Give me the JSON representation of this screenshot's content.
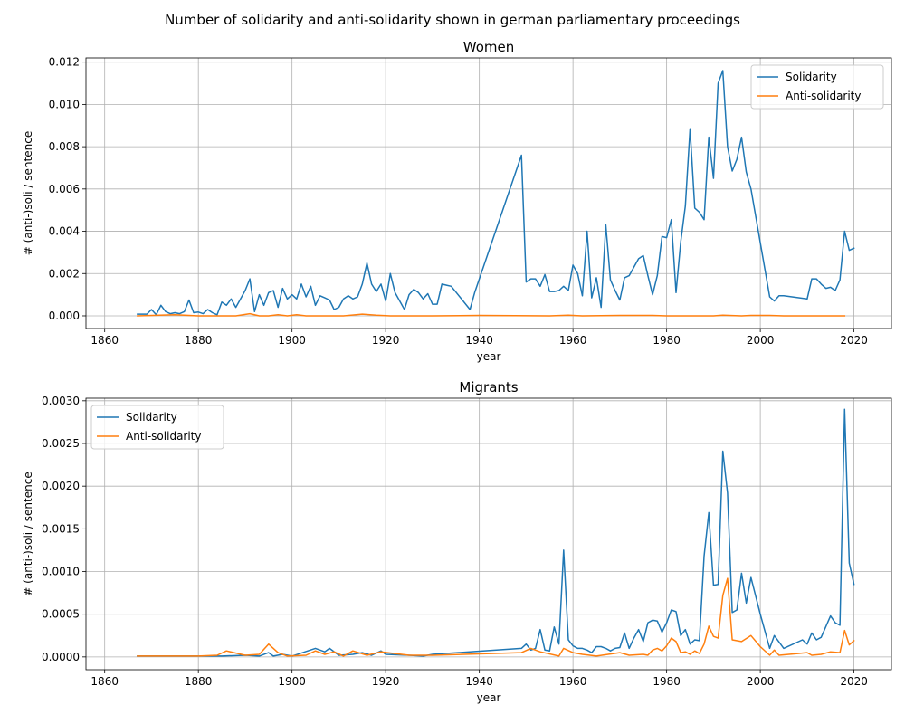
{
  "title": "Number of solidarity and anti-solidarity shown in german parliamentary proceedings",
  "colors": {
    "solidarity": "#1f77b4",
    "anti_solidarity": "#ff7f0e"
  },
  "chart_data": [
    {
      "type": "line",
      "title": "Women",
      "xlabel": "year",
      "ylabel": "# (anti-)soli / sentence",
      "xlim": [
        1856,
        2028
      ],
      "ylim": [
        -0.0006,
        0.0122
      ],
      "xticks": [
        1860,
        1880,
        1900,
        1920,
        1940,
        1960,
        1980,
        2000,
        2020
      ],
      "xtick_labels": [
        "1860",
        "1880",
        "1900",
        "1920",
        "1940",
        "1960",
        "1980",
        "2000",
        "2020"
      ],
      "yticks": [
        0,
        0.002,
        0.004,
        0.006,
        0.008,
        0.01,
        0.012
      ],
      "ytick_labels": [
        "0.000",
        "0.002",
        "0.004",
        "0.006",
        "0.008",
        "0.010",
        "0.012"
      ],
      "grid": true,
      "legend_position": "upper right",
      "series": [
        {
          "name": "Solidarity",
          "color": "#1f77b4",
          "x": [
            1867,
            1869,
            1870,
            1871,
            1872,
            1873,
            1874,
            1875,
            1876,
            1877,
            1878,
            1879,
            1880,
            1881,
            1882,
            1883,
            1884,
            1885,
            1886,
            1887,
            1888,
            1889,
            1890,
            1891,
            1892,
            1893,
            1894,
            1895,
            1896,
            1897,
            1898,
            1899,
            1900,
            1901,
            1902,
            1903,
            1904,
            1905,
            1906,
            1907,
            1908,
            1909,
            1910,
            1911,
            1912,
            1913,
            1914,
            1915,
            1916,
            1917,
            1918,
            1919,
            1920,
            1921,
            1922,
            1923,
            1924,
            1925,
            1926,
            1927,
            1928,
            1929,
            1930,
            1931,
            1932,
            1933,
            1934,
            1938,
            1939,
            1949,
            1950,
            1951,
            1952,
            1953,
            1954,
            1955,
            1956,
            1957,
            1958,
            1959,
            1960,
            1961,
            1962,
            1963,
            1964,
            1965,
            1966,
            1967,
            1968,
            1969,
            1970,
            1971,
            1972,
            1973,
            1974,
            1975,
            1976,
            1977,
            1978,
            1979,
            1980,
            1981,
            1982,
            1983,
            1984,
            1985,
            1986,
            1987,
            1988,
            1989,
            1990,
            1991,
            1992,
            1993,
            1994,
            1995,
            1996,
            1997,
            1998,
            2002,
            2003,
            2004,
            2005,
            2010,
            2011,
            2012,
            2013,
            2014,
            2015,
            2016,
            2017,
            2018,
            2019,
            2020
          ],
          "y": [
            8e-05,
            8e-05,
            0.0003,
            5e-05,
            0.0005,
            0.0002,
            0.0001,
            0.00015,
            0.0001,
            0.0002,
            0.00075,
            0.00015,
            0.00018,
            0.0001,
            0.0003,
            0.00015,
            5e-05,
            0.00065,
            0.0005,
            0.0008,
            0.0004,
            0.0008,
            0.0012,
            0.00175,
            0.0002,
            0.001,
            0.0005,
            0.0011,
            0.0012,
            0.0004,
            0.0013,
            0.0008,
            0.001,
            0.0008,
            0.0015,
            0.0009,
            0.0014,
            0.0005,
            0.00095,
            0.00085,
            0.00075,
            0.0003,
            0.0004,
            0.0008,
            0.00095,
            0.0008,
            0.0009,
            0.0015,
            0.0025,
            0.0015,
            0.00115,
            0.0015,
            0.0007,
            0.002,
            0.0011,
            0.0007,
            0.0003,
            0.001,
            0.00125,
            0.0011,
            0.0008,
            0.00105,
            0.00055,
            0.00055,
            0.0015,
            0.00145,
            0.0014,
            0.0003,
            0.0011,
            0.0076,
            0.0016,
            0.00175,
            0.00175,
            0.0014,
            0.00195,
            0.00115,
            0.00115,
            0.0012,
            0.0014,
            0.0012,
            0.0024,
            0.002,
            0.00095,
            0.004,
            0.00085,
            0.0018,
            0.0004,
            0.0043,
            0.0017,
            0.0012,
            0.00075,
            0.0018,
            0.0019,
            0.0023,
            0.0027,
            0.00285,
            0.0019,
            0.001,
            0.0019,
            0.00375,
            0.0037,
            0.00455,
            0.0011,
            0.0035,
            0.0052,
            0.00885,
            0.0051,
            0.0049,
            0.00455,
            0.00845,
            0.0065,
            0.011,
            0.0116,
            0.008,
            0.00685,
            0.0074,
            0.00845,
            0.0068,
            0.006,
            0.0009,
            0.0007,
            0.00095,
            0.00095,
            0.0008,
            0.00175,
            0.00175,
            0.0015,
            0.0013,
            0.00135,
            0.0012,
            0.0017,
            0.004,
            0.0031,
            0.0032
          ]
        },
        {
          "name": "Anti-solidarity",
          "color": "#ff7f0e",
          "x": [
            1867,
            1875,
            1880,
            1888,
            1891,
            1893,
            1895,
            1897,
            1899,
            1901,
            1903,
            1907,
            1911,
            1915,
            1918,
            1921,
            1930,
            1940,
            1955,
            1959,
            1962,
            1970,
            1977,
            1980,
            1985,
            1990,
            1992,
            1996,
            1998,
            2002,
            2005,
            2010,
            2015,
            2018
          ],
          "y": [
            0.0,
            5e-05,
            0.0,
            0.0,
            0.0001,
            0.0,
            0.0,
            5e-05,
            0.0,
            5e-05,
            0.0,
            0.0,
            0.0,
            8e-05,
            3e-05,
            0.0,
            0.0,
            2e-05,
            0.0,
            3e-05,
            0.0,
            2e-05,
            2e-05,
            0.0,
            0.0,
            0.0,
            3e-05,
            0.0,
            2e-05,
            2e-05,
            0.0,
            0.0,
            0.0,
            0.0
          ]
        }
      ]
    },
    {
      "type": "line",
      "title": "Migrants",
      "xlabel": "year",
      "ylabel": "# (anti-)soli / sentence",
      "xlim": [
        1856,
        2028
      ],
      "ylim": [
        -0.00015,
        0.00303
      ],
      "xticks": [
        1860,
        1880,
        1900,
        1920,
        1940,
        1960,
        1980,
        2000,
        2020
      ],
      "xtick_labels": [
        "1860",
        "1880",
        "1900",
        "1920",
        "1940",
        "1960",
        "1980",
        "2000",
        "2020"
      ],
      "yticks": [
        0,
        0.0005,
        0.001,
        0.0015,
        0.002,
        0.0025,
        0.003
      ],
      "ytick_labels": [
        "0.0000",
        "0.0005",
        "0.0010",
        "0.0015",
        "0.0020",
        "0.0025",
        "0.0030"
      ],
      "grid": true,
      "legend_position": "upper left",
      "series": [
        {
          "name": "Solidarity",
          "color": "#1f77b4",
          "x": [
            1867,
            1880,
            1885,
            1890,
            1893,
            1895,
            1896,
            1898,
            1900,
            1905,
            1907,
            1908,
            1910,
            1913,
            1915,
            1917,
            1919,
            1920,
            1925,
            1928,
            1930,
            1949,
            1950,
            1951,
            1952,
            1953,
            1954,
            1955,
            1956,
            1957,
            1958,
            1959,
            1960,
            1961,
            1962,
            1963,
            1964,
            1965,
            1966,
            1967,
            1968,
            1969,
            1970,
            1971,
            1972,
            1973,
            1974,
            1975,
            1976,
            1977,
            1978,
            1979,
            1980,
            1981,
            1982,
            1983,
            1984,
            1985,
            1986,
            1987,
            1988,
            1989,
            1990,
            1991,
            1992,
            1993,
            1994,
            1995,
            1996,
            1997,
            1998,
            2000,
            2002,
            2003,
            2005,
            2009,
            2010,
            2011,
            2012,
            2013,
            2015,
            2016,
            2017,
            2018,
            2019,
            2020
          ],
          "y": [
            1e-05,
            1e-05,
            1e-05,
            2e-05,
            1e-05,
            5e-05,
            1e-05,
            3e-05,
            1e-05,
            0.0001,
            6e-05,
            0.0001,
            2e-05,
            3e-05,
            5e-05,
            2e-05,
            7e-05,
            3e-05,
            2e-05,
            1e-05,
            3e-05,
            0.0001,
            0.00015,
            8e-05,
            0.0001,
            0.00032,
            8e-05,
            7e-05,
            0.00035,
            0.00015,
            0.00125,
            0.0002,
            0.00013,
            0.0001,
            0.0001,
            8e-05,
            5e-05,
            0.00012,
            0.00012,
            0.0001,
            7e-05,
            0.0001,
            0.00011,
            0.00028,
            0.0001,
            0.00022,
            0.00032,
            0.00018,
            0.0004,
            0.00043,
            0.00042,
            0.00029,
            0.0004,
            0.00055,
            0.00053,
            0.00025,
            0.00032,
            0.00015,
            0.0002,
            0.00019,
            0.00118,
            0.00169,
            0.00084,
            0.00085,
            0.00241,
            0.00192,
            0.00052,
            0.00055,
            0.00098,
            0.00063,
            0.00093,
            0.0005,
            0.0001,
            0.00025,
            0.0001,
            0.0002,
            0.00015,
            0.00028,
            0.0002,
            0.00023,
            0.00048,
            0.0004,
            0.00037,
            0.0029,
            0.0011,
            0.00085
          ]
        },
        {
          "name": "Anti-solidarity",
          "color": "#ff7f0e",
          "x": [
            1867,
            1880,
            1884,
            1886,
            1890,
            1893,
            1895,
            1897,
            1899,
            1903,
            1905,
            1907,
            1909,
            1911,
            1913,
            1916,
            1919,
            1925,
            1930,
            1949,
            1951,
            1953,
            1957,
            1958,
            1960,
            1962,
            1965,
            1970,
            1972,
            1975,
            1976,
            1977,
            1978,
            1979,
            1980,
            1981,
            1982,
            1983,
            1984,
            1985,
            1986,
            1987,
            1988,
            1989,
            1990,
            1991,
            1992,
            1993,
            1994,
            1996,
            1998,
            2000,
            2002,
            2003,
            2004,
            2008,
            2010,
            2011,
            2013,
            2015,
            2017,
            2018,
            2019,
            2020
          ],
          "y": [
            1e-05,
            1e-05,
            2e-05,
            7e-05,
            2e-05,
            3e-05,
            0.00015,
            5e-05,
            1e-05,
            2e-05,
            7e-05,
            3e-05,
            6e-05,
            1e-05,
            7e-05,
            2e-05,
            6e-05,
            2e-05,
            2e-05,
            5e-05,
            0.0001,
            6e-05,
            1e-05,
            0.0001,
            5e-05,
            3e-05,
            1e-05,
            5e-05,
            2e-05,
            3e-05,
            2e-05,
            8e-05,
            0.0001,
            7e-05,
            0.00013,
            0.00022,
            0.00018,
            5e-05,
            6e-05,
            3e-05,
            7e-05,
            4e-05,
            0.00015,
            0.00036,
            0.00024,
            0.00022,
            0.00072,
            0.00092,
            0.0002,
            0.00018,
            0.00025,
            0.00012,
            2e-05,
            8e-05,
            2e-05,
            4e-05,
            5e-05,
            2e-05,
            3e-05,
            6e-05,
            5e-05,
            0.00031,
            0.00014,
            0.00019
          ]
        }
      ]
    }
  ]
}
